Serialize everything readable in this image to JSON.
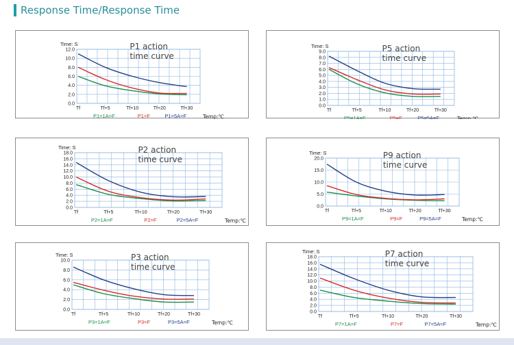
{
  "page": {
    "title": "Response Time/Response Time",
    "colors": {
      "accent": "#1f9fa8",
      "title": "#2a8f9a",
      "green": "#1b8e4a",
      "red": "#d62b2b",
      "blue": "#233f86",
      "grid": "#8ab4e0"
    }
  },
  "chart_data": [
    {
      "id": "P1",
      "type": "line",
      "title": "P1 action",
      "subtitle": "time curve",
      "ylabel": "Time: S",
      "xlabel": "Temp:℃",
      "categories": [
        "Tf",
        "Tf+5",
        "Tf+10",
        "Tf+20",
        "Tf+30"
      ],
      "x": [
        0,
        1,
        2,
        3,
        4
      ],
      "yticks": [
        "12.0",
        "10.0",
        "8.0",
        "6.0",
        "4.0",
        "2.0",
        "0.0"
      ],
      "ylim": [
        0,
        12
      ],
      "grid": true,
      "series": [
        {
          "name": "P1=1A=F",
          "color": "#1b8e4a",
          "values": [
            6.0,
            3.9,
            2.8,
            2.1,
            1.9
          ]
        },
        {
          "name": "P1=F",
          "color": "#d62b2b",
          "values": [
            8.0,
            5.3,
            3.4,
            2.3,
            2.2
          ]
        },
        {
          "name": "P1=5A=F",
          "color": "#233f86",
          "values": [
            11.0,
            8.0,
            6.0,
            4.6,
            3.7
          ]
        }
      ]
    },
    {
      "id": "P5",
      "type": "line",
      "title": "P5 action",
      "subtitle": "time curve",
      "ylabel": "Time: S",
      "xlabel": "Temp:℃",
      "categories": [
        "Tf",
        "Tf+5",
        "Tf+10",
        "Tf+20",
        "Tf+30"
      ],
      "x": [
        0,
        1,
        2,
        3,
        4
      ],
      "yticks": [
        "9.0",
        "8.0",
        "7.0",
        "6.0",
        "5.0",
        "4.0",
        "3.0",
        "2.0",
        "1.0",
        "0.0"
      ],
      "ylim": [
        0,
        9
      ],
      "grid": true,
      "series": [
        {
          "name": "P5=1A=F",
          "color": "#1b8e4a",
          "values": [
            6.0,
            3.6,
            2.1,
            1.5,
            1.5
          ]
        },
        {
          "name": "P5=F",
          "color": "#d62b2b",
          "values": [
            6.3,
            4.3,
            2.6,
            1.9,
            1.9
          ]
        },
        {
          "name": "P5=5A=F",
          "color": "#233f86",
          "values": [
            8.2,
            5.8,
            3.7,
            2.8,
            2.7
          ]
        }
      ]
    },
    {
      "id": "P2",
      "type": "line",
      "title": "P2 action",
      "subtitle": "time curve",
      "ylabel": "Time: S",
      "xlabel": "Temp:℃",
      "categories": [
        "Tf",
        "Tf+5",
        "Tf+10",
        "Tf+20",
        "Tf+30"
      ],
      "x": [
        0,
        1,
        2,
        3,
        4
      ],
      "yticks": [
        "18.0",
        "16.0",
        "14.0",
        "12.0",
        "10.0",
        "8.0",
        "6.0",
        "4.0",
        "2.0",
        "0.0"
      ],
      "ylim": [
        0,
        18
      ],
      "grid": true,
      "series": [
        {
          "name": "P2=1A=F",
          "color": "#1b8e4a",
          "values": [
            7.5,
            4.3,
            2.9,
            2.1,
            2.3
          ]
        },
        {
          "name": "P2=F",
          "color": "#d62b2b",
          "values": [
            10.0,
            5.3,
            3.2,
            2.4,
            2.8
          ]
        },
        {
          "name": "P2=5A=F",
          "color": "#233f86",
          "values": [
            14.8,
            8.8,
            5.0,
            3.5,
            3.6
          ]
        }
      ]
    },
    {
      "id": "P9",
      "type": "line",
      "title": "P9 action",
      "subtitle": "time curve",
      "ylabel": "Time: S",
      "xlabel": "Temp:℃",
      "categories": [
        "Tf",
        "Tf+5",
        "Tf+10",
        "Tf+20",
        "Tf+30"
      ],
      "x": [
        0,
        1,
        2,
        3,
        4
      ],
      "yticks": [
        "20.0",
        "15.0",
        "10.0",
        "5.0",
        "0.0"
      ],
      "ylim": [
        0,
        20
      ],
      "grid": true,
      "series": [
        {
          "name": "P9=1A=F",
          "color": "#1b8e4a",
          "values": [
            5.8,
            4.2,
            3.0,
            2.4,
            2.2
          ]
        },
        {
          "name": "P9=F",
          "color": "#d62b2b",
          "values": [
            8.5,
            4.8,
            3.2,
            2.6,
            3.0
          ]
        },
        {
          "name": "P9=5A=F",
          "color": "#233f86",
          "values": [
            17.5,
            10.0,
            6.2,
            4.6,
            4.8
          ]
        }
      ]
    },
    {
      "id": "P3",
      "type": "line",
      "title": "P3 action",
      "subtitle": "time curve",
      "ylabel": "Time: S",
      "xlabel": "Temp:℃",
      "categories": [
        "Tf",
        "Tf+5",
        "Tf+10",
        "Tf+20",
        "Tf+30"
      ],
      "x": [
        0,
        1,
        2,
        3,
        4
      ],
      "yticks": [
        "10.0",
        "8.0",
        "6.0",
        "4.0",
        "2.0",
        "0.0"
      ],
      "ylim": [
        0,
        10
      ],
      "grid": true,
      "series": [
        {
          "name": "P3=1A=F",
          "color": "#1b8e4a",
          "values": [
            5.0,
            3.2,
            2.2,
            1.5,
            1.5
          ]
        },
        {
          "name": "P3=F",
          "color": "#d62b2b",
          "values": [
            5.5,
            3.9,
            2.7,
            2.1,
            2.1
          ]
        },
        {
          "name": "P3=5A=F",
          "color": "#233f86",
          "values": [
            8.6,
            6.0,
            4.2,
            3.0,
            2.8
          ]
        }
      ]
    },
    {
      "id": "P7",
      "type": "line",
      "title": "P7 action",
      "subtitle": "time curve",
      "ylabel": "Time: S",
      "xlabel": "Temp:℃",
      "categories": [
        "Tf",
        "Tf+5",
        "Tf+10",
        "Tf+20",
        "Tf+30"
      ],
      "x": [
        0,
        1,
        2,
        3,
        4
      ],
      "yticks": [
        "18.0",
        "16.0",
        "14.0",
        "12.0",
        "10.0",
        "8.0",
        "6.0",
        "4.0",
        "2.0",
        "0.0"
      ],
      "ylim": [
        0,
        18
      ],
      "grid": true,
      "series": [
        {
          "name": "P7=1A=F",
          "color": "#1b8e4a",
          "values": [
            7.0,
            4.6,
            3.4,
            2.6,
            2.4
          ]
        },
        {
          "name": "P7=F",
          "color": "#d62b2b",
          "values": [
            11.0,
            7.0,
            4.4,
            3.0,
            2.8
          ]
        },
        {
          "name": "P7=5A=F",
          "color": "#233f86",
          "values": [
            15.5,
            10.8,
            7.0,
            4.8,
            4.6
          ]
        }
      ]
    }
  ]
}
